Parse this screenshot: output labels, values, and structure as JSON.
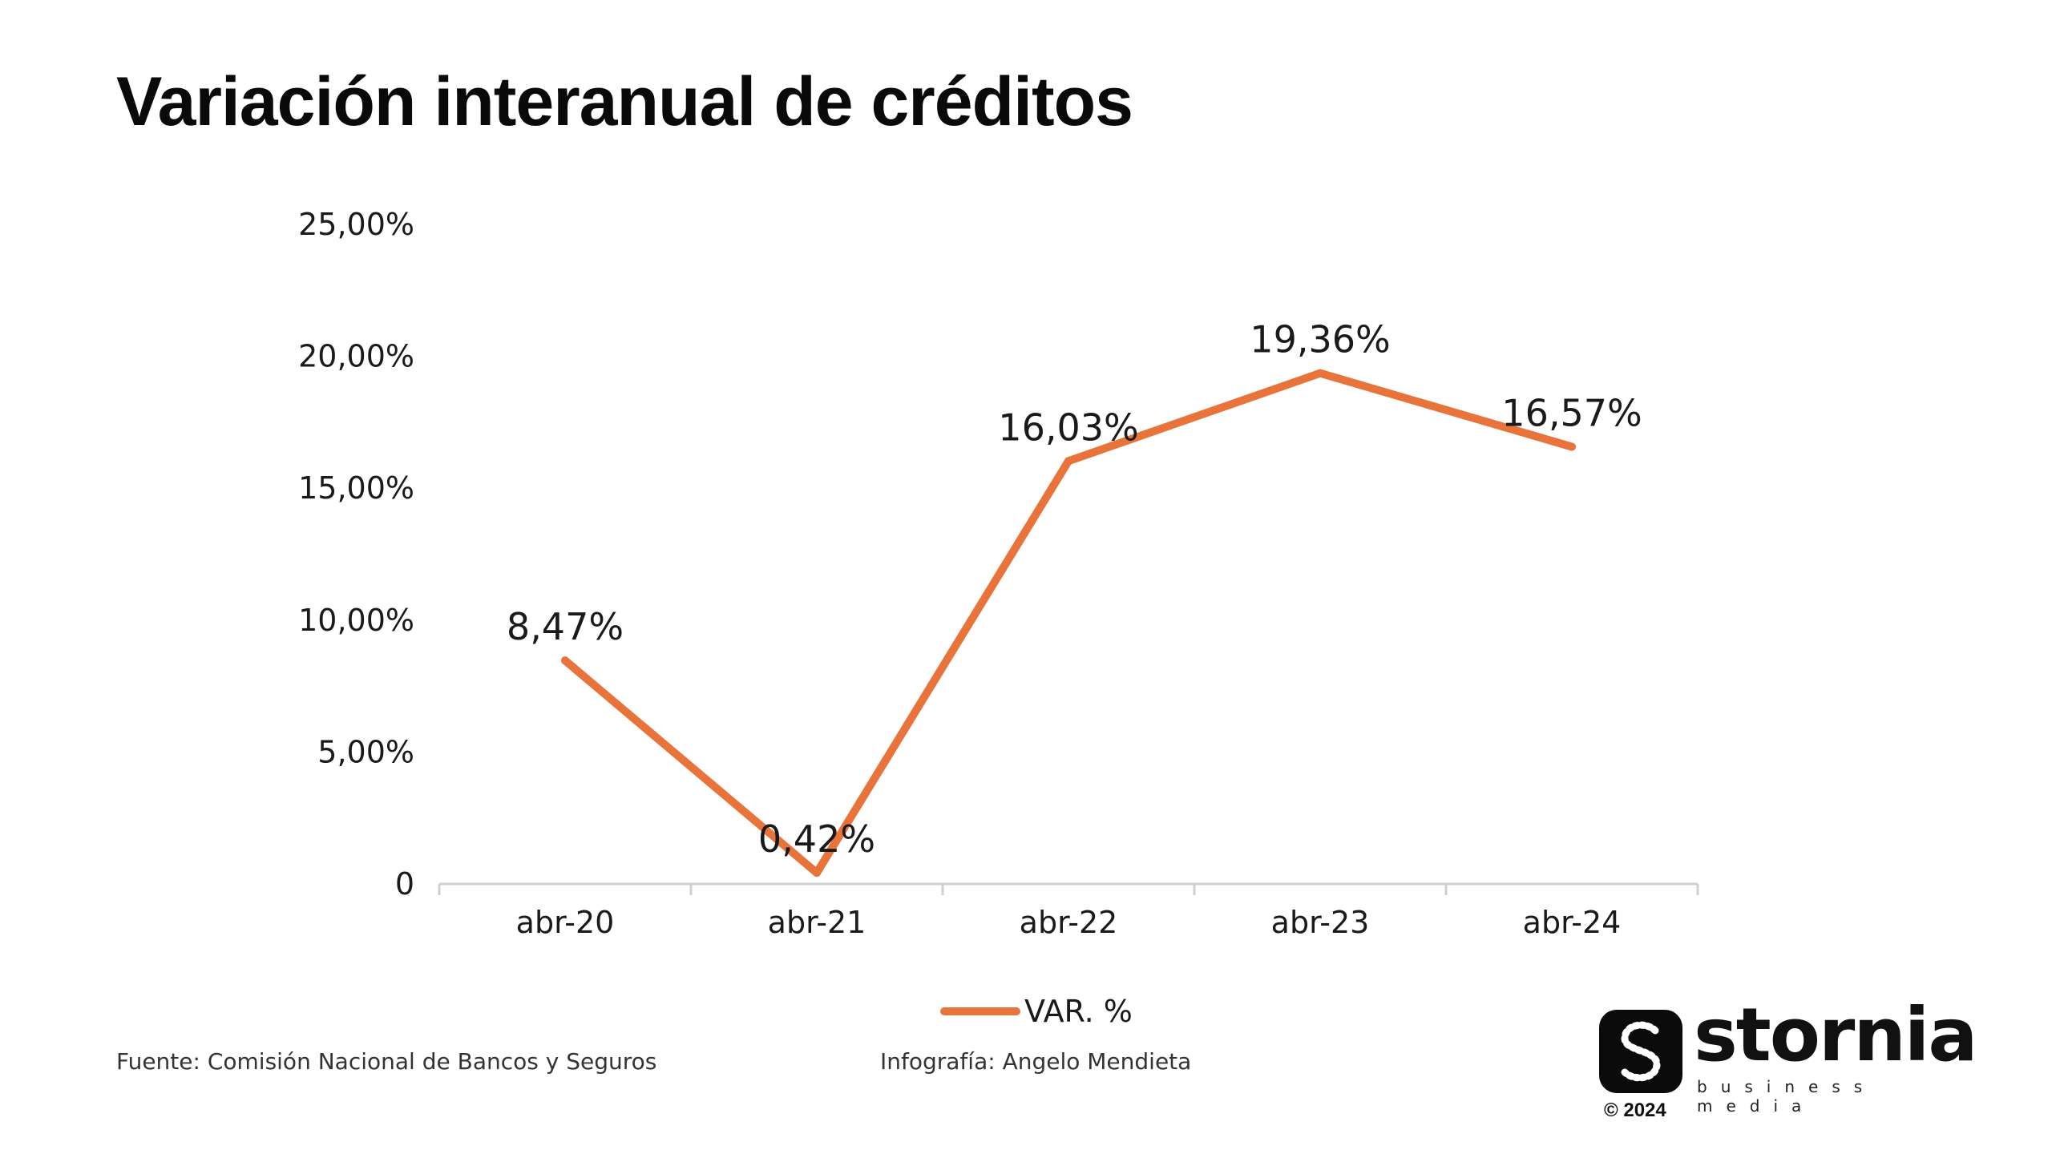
{
  "title": "Variación interanual de créditos",
  "chart_data": {
    "type": "line",
    "title": "Variación interanual de créditos",
    "categories": [
      "abr-20",
      "abr-21",
      "abr-22",
      "abr-23",
      "abr-24"
    ],
    "series": [
      {
        "name": "VAR. %",
        "values": [
          8.47,
          0.42,
          16.03,
          19.36,
          16.57
        ],
        "labels": [
          "8,47%",
          "0,42%",
          "16,03%",
          "19,36%",
          "16,57%"
        ],
        "color": "#E8743B"
      }
    ],
    "y_ticks": [
      {
        "value": 0,
        "label": "0"
      },
      {
        "value": 5,
        "label": "5,00%"
      },
      {
        "value": 10,
        "label": "10,00%"
      },
      {
        "value": 15,
        "label": "15,00%"
      },
      {
        "value": 20,
        "label": "20,00%"
      },
      {
        "value": 25,
        "label": "25,00%"
      }
    ],
    "ylim": [
      0,
      25
    ],
    "grid": false,
    "legend": "bottom-center",
    "xlabel": "",
    "ylabel": ""
  },
  "footer": {
    "source": "Fuente: Comisión Nacional de Bancos y Seguros",
    "credit": "Infografía: Angelo Mendieta"
  },
  "logo": {
    "wordmark": "stornia",
    "tagline": "business media",
    "copyright": "© 2024"
  },
  "colors": {
    "line": "#E8743B",
    "axis": "#D0D0D0",
    "text": "#1a1a1a"
  }
}
